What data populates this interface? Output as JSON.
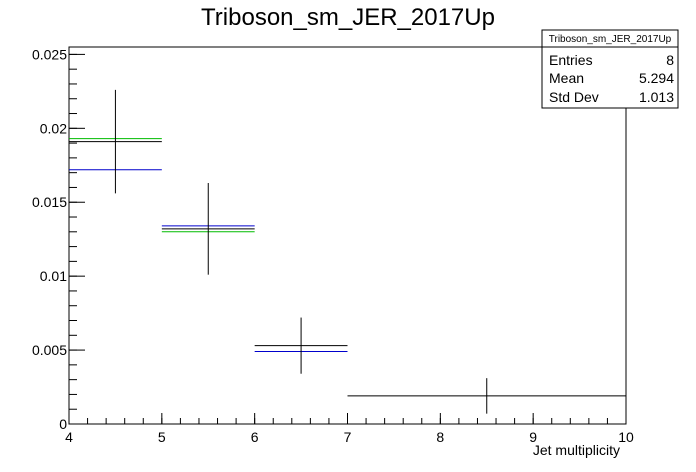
{
  "chart_data": {
    "type": "histogram",
    "title": "Triboson_sm_JER_2017Up",
    "xlabel": "Jet multiplicity",
    "ylabel": "",
    "xlim": [
      4,
      10
    ],
    "ylim": [
      0,
      0.0255
    ],
    "x_ticks": [
      4,
      5,
      6,
      7,
      8,
      9,
      10
    ],
    "x_tick_labels": [
      "4",
      "5",
      "6",
      "7",
      "8",
      "9",
      "10"
    ],
    "y_ticks": [
      0,
      0.005,
      0.01,
      0.015,
      0.02,
      0.025
    ],
    "y_tick_labels": [
      "0",
      "0.005",
      "0.01",
      "0.015",
      "0.02",
      "0.025"
    ],
    "grid": false,
    "series": [
      {
        "color": "#000000",
        "style": "errorbar",
        "bins": [
          {
            "x_low": 4,
            "x_high": 5,
            "y": 0.0191,
            "err": 0.0035
          },
          {
            "x_low": 5,
            "x_high": 6,
            "y": 0.0132,
            "err": 0.0031
          },
          {
            "x_low": 6,
            "x_high": 7,
            "y": 0.0053,
            "err": 0.0019
          },
          {
            "x_low": 7,
            "x_high": 10,
            "y": 0.0019,
            "err": 0.0012
          }
        ]
      },
      {
        "color": "#0000cc",
        "style": "step",
        "bins": [
          {
            "x_low": 4,
            "x_high": 5,
            "y": 0.0172
          },
          {
            "x_low": 5,
            "x_high": 6,
            "y": 0.0134
          },
          {
            "x_low": 6,
            "x_high": 7,
            "y": 0.0049
          }
        ]
      },
      {
        "color": "#00bb00",
        "style": "step",
        "bins": [
          {
            "x_low": 4,
            "x_high": 5,
            "y": 0.0193
          },
          {
            "x_low": 5,
            "x_high": 6,
            "y": 0.013
          }
        ]
      }
    ],
    "stats_box": {
      "title": "Triboson_sm_JER_2017Up",
      "position": "top-right",
      "rows": [
        {
          "label": "Entries",
          "value": "8"
        },
        {
          "label": "Mean",
          "value": "5.294"
        },
        {
          "label": "Std Dev",
          "value": "1.013"
        }
      ]
    }
  }
}
